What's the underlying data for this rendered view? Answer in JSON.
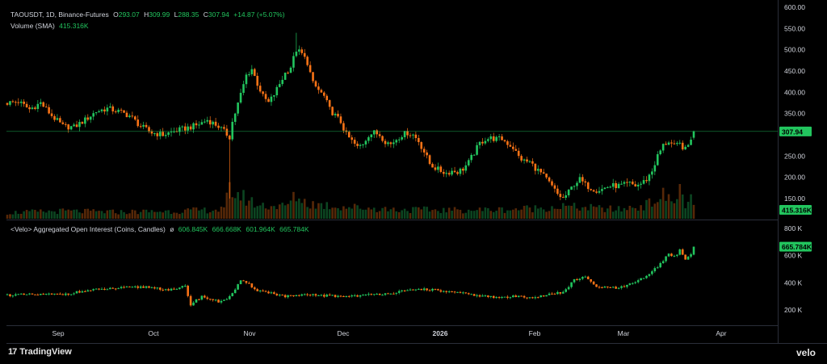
{
  "header": {
    "symbol": "TAOUSDT, 1D, Binance-Futures",
    "open_label": "O",
    "open": "293.07",
    "high_label": "H",
    "high": "309.99",
    "low_label": "L",
    "low": "288.35",
    "close_label": "C",
    "close": "307.94",
    "change": "+14.87 (+5.07%)",
    "volume_label": "Volume (SMA)",
    "volume_value": "415.316K"
  },
  "oi_header": {
    "label": "<Velo> Aggregated Open Interest (Coins, Candles)",
    "symbol": "ø",
    "o": "606.845K",
    "h": "666.668K",
    "l": "601.964K",
    "c": "665.784K"
  },
  "footer": {
    "brand": "TradingView",
    "brand_mark": "17",
    "source": "velo"
  },
  "colors": {
    "up": "#22c55e",
    "down": "#f97316",
    "background": "#000000",
    "price_line": "#22c55e"
  },
  "chart_data": [
    {
      "type": "candlestick",
      "title": "TAOUSDT, 1D, Binance-Futures",
      "y_ticks": [
        "600.00",
        "550.00",
        "500.00",
        "450.00",
        "400.00",
        "350.00",
        "250.00",
        "200.00",
        "150.00",
        "100.00"
      ],
      "ylim": [
        100,
        600
      ],
      "x_ticks": [
        "Sep",
        "Oct",
        "Nov",
        "Dec",
        "2026",
        "Feb",
        "Mar",
        "Apr"
      ],
      "last_price_label": "307.94",
      "volume_label_badge": "415.316K",
      "anchors": [
        [
          0,
          375
        ],
        [
          4,
          378
        ],
        [
          8,
          360
        ],
        [
          12,
          375
        ],
        [
          16,
          345
        ],
        [
          20,
          320
        ],
        [
          24,
          318
        ],
        [
          28,
          335
        ],
        [
          32,
          355
        ],
        [
          36,
          362
        ],
        [
          40,
          355
        ],
        [
          44,
          345
        ],
        [
          48,
          320
        ],
        [
          52,
          305
        ],
        [
          56,
          300
        ],
        [
          60,
          308
        ],
        [
          64,
          315
        ],
        [
          68,
          322
        ],
        [
          72,
          335
        ],
        [
          76,
          320
        ],
        [
          80,
          295
        ],
        [
          81,
          330
        ],
        [
          84,
          395
        ],
        [
          86,
          440
        ],
        [
          88,
          455
        ],
        [
          90,
          420
        ],
        [
          92,
          390
        ],
        [
          94,
          375
        ],
        [
          96,
          395
        ],
        [
          98,
          420
        ],
        [
          100,
          445
        ],
        [
          102,
          460
        ],
        [
          104,
          500
        ],
        [
          106,
          490
        ],
        [
          108,
          470
        ],
        [
          110,
          420
        ],
        [
          112,
          405
        ],
        [
          114,
          390
        ],
        [
          116,
          360
        ],
        [
          118,
          345
        ],
        [
          120,
          330
        ],
        [
          122,
          300
        ],
        [
          124,
          285
        ],
        [
          126,
          270
        ],
        [
          128,
          280
        ],
        [
          130,
          300
        ],
        [
          132,
          305
        ],
        [
          134,
          300
        ],
        [
          136,
          285
        ],
        [
          138,
          278
        ],
        [
          140,
          290
        ],
        [
          142,
          300
        ],
        [
          144,
          305
        ],
        [
          146,
          300
        ],
        [
          148,
          285
        ],
        [
          150,
          260
        ],
        [
          152,
          232
        ],
        [
          154,
          222
        ],
        [
          156,
          215
        ],
        [
          158,
          210
        ],
        [
          160,
          215
        ],
        [
          162,
          213
        ],
        [
          164,
          220
        ],
        [
          166,
          235
        ],
        [
          168,
          258
        ],
        [
          170,
          280
        ],
        [
          172,
          290
        ],
        [
          174,
          292
        ],
        [
          176,
          290
        ],
        [
          178,
          290
        ],
        [
          180,
          280
        ],
        [
          182,
          270
        ],
        [
          184,
          248
        ],
        [
          186,
          238
        ],
        [
          188,
          236
        ],
        [
          190,
          222
        ],
        [
          192,
          210
        ],
        [
          194,
          195
        ],
        [
          196,
          178
        ],
        [
          198,
          160
        ],
        [
          200,
          150
        ],
        [
          202,
          165
        ],
        [
          204,
          185
        ],
        [
          206,
          195
        ],
        [
          208,
          182
        ],
        [
          210,
          175
        ],
        [
          212,
          170
        ],
        [
          214,
          172
        ],
        [
          216,
          178
        ],
        [
          218,
          180
        ],
        [
          220,
          180
        ],
        [
          222,
          182
        ],
        [
          224,
          185
        ],
        [
          226,
          180
        ],
        [
          228,
          185
        ],
        [
          230,
          195
        ],
        [
          232,
          215
        ],
        [
          234,
          250
        ],
        [
          236,
          275
        ],
        [
          238,
          285
        ],
        [
          240,
          272
        ],
        [
          242,
          278
        ],
        [
          244,
          265
        ],
        [
          245,
          275
        ],
        [
          246,
          293
        ],
        [
          247,
          308
        ]
      ],
      "volume_anchors": [
        [
          0,
          20
        ],
        [
          20,
          25
        ],
        [
          40,
          22
        ],
        [
          60,
          25
        ],
        [
          78,
          30
        ],
        [
          80,
          95
        ],
        [
          82,
          85
        ],
        [
          90,
          45
        ],
        [
          100,
          40
        ],
        [
          104,
          75
        ],
        [
          108,
          50
        ],
        [
          120,
          40
        ],
        [
          140,
          30
        ],
        [
          160,
          28
        ],
        [
          180,
          30
        ],
        [
          200,
          40
        ],
        [
          210,
          35
        ],
        [
          220,
          30
        ],
        [
          230,
          45
        ],
        [
          236,
          75
        ],
        [
          240,
          55
        ],
        [
          242,
          95
        ],
        [
          244,
          50
        ],
        [
          246,
          60
        ],
        [
          247,
          40
        ]
      ]
    },
    {
      "type": "candlestick",
      "title": "<Velo> Aggregated Open Interest (Coins, Candles)",
      "y_ticks": [
        "800 K",
        "600 K",
        "400 K",
        "200 K"
      ],
      "ylim": [
        100,
        900
      ],
      "last_value_label": "665.784K",
      "anchors": [
        [
          0,
          310
        ],
        [
          20,
          315
        ],
        [
          30,
          345
        ],
        [
          40,
          360
        ],
        [
          50,
          370
        ],
        [
          60,
          345
        ],
        [
          64,
          375
        ],
        [
          66,
          240
        ],
        [
          70,
          300
        ],
        [
          76,
          260
        ],
        [
          80,
          295
        ],
        [
          84,
          410
        ],
        [
          86,
          400
        ],
        [
          90,
          345
        ],
        [
          96,
          320
        ],
        [
          100,
          300
        ],
        [
          110,
          310
        ],
        [
          120,
          300
        ],
        [
          130,
          310
        ],
        [
          140,
          330
        ],
        [
          150,
          355
        ],
        [
          154,
          345
        ],
        [
          160,
          330
        ],
        [
          168,
          310
        ],
        [
          176,
          290
        ],
        [
          184,
          300
        ],
        [
          190,
          295
        ],
        [
          200,
          330
        ],
        [
          204,
          420
        ],
        [
          208,
          440
        ],
        [
          212,
          370
        ],
        [
          220,
          360
        ],
        [
          226,
          400
        ],
        [
          232,
          480
        ],
        [
          236,
          560
        ],
        [
          238,
          620
        ],
        [
          240,
          590
        ],
        [
          242,
          640
        ],
        [
          244,
          570
        ],
        [
          246,
          610
        ],
        [
          247,
          665
        ]
      ]
    }
  ]
}
